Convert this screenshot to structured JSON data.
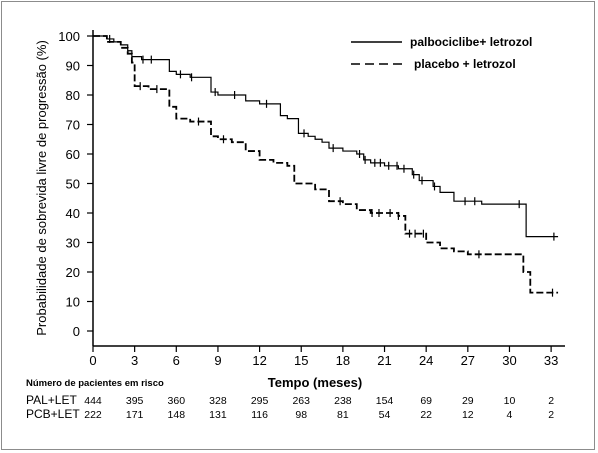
{
  "chart_data": {
    "type": "line",
    "ylabel": "Probabilidade de sobrevida livre de progressão (%)",
    "xlabel": "Tempo (meses)",
    "xlim": [
      0,
      34
    ],
    "ylim": [
      0,
      100
    ],
    "x_ticks": [
      0,
      3,
      6,
      9,
      12,
      15,
      18,
      21,
      24,
      27,
      30,
      33
    ],
    "y_ticks": [
      0,
      10,
      20,
      30,
      40,
      50,
      60,
      70,
      80,
      90,
      100
    ],
    "grid": false,
    "legend_position": "top-right",
    "series": [
      {
        "name": "palbociclibe+ letrozol",
        "style": "solid",
        "points": [
          [
            0,
            100
          ],
          [
            0.5,
            100
          ],
          [
            1,
            99
          ],
          [
            1.5,
            98
          ],
          [
            2,
            97
          ],
          [
            2.5,
            95
          ],
          [
            2.8,
            93
          ],
          [
            3.5,
            92
          ],
          [
            5,
            92
          ],
          [
            5.5,
            88
          ],
          [
            6,
            87
          ],
          [
            7,
            86
          ],
          [
            8,
            86
          ],
          [
            8.5,
            81
          ],
          [
            9,
            80
          ],
          [
            10,
            80
          ],
          [
            11,
            78
          ],
          [
            12,
            77
          ],
          [
            13,
            77
          ],
          [
            13.5,
            73
          ],
          [
            14,
            72
          ],
          [
            14.8,
            67
          ],
          [
            15.5,
            66
          ],
          [
            16,
            65
          ],
          [
            16.5,
            64
          ],
          [
            17,
            62
          ],
          [
            18,
            61
          ],
          [
            19,
            60
          ],
          [
            19.5,
            58
          ],
          [
            20,
            57
          ],
          [
            21,
            56
          ],
          [
            22,
            55
          ],
          [
            23,
            53
          ],
          [
            23.5,
            51
          ],
          [
            24,
            51
          ],
          [
            24.5,
            49
          ],
          [
            25,
            47
          ],
          [
            26,
            44
          ],
          [
            27,
            44
          ],
          [
            28,
            43
          ],
          [
            29,
            43
          ],
          [
            30,
            43
          ],
          [
            31,
            43
          ],
          [
            31.2,
            32
          ],
          [
            32,
            32
          ],
          [
            33.5,
            32
          ]
        ],
        "censor_x": [
          1.2,
          3.6,
          4.2,
          6.3,
          7.1,
          8.8,
          10.2,
          12.5,
          15.2,
          17.3,
          19.2,
          19.6,
          20.3,
          20.7,
          21.3,
          21.9,
          22.4,
          23.1,
          23.7,
          24.6,
          26.8,
          27.5,
          30.7,
          33.2
        ]
      },
      {
        "name": "placebo + letrozol",
        "style": "dashed",
        "points": [
          [
            0,
            100
          ],
          [
            0.5,
            100
          ],
          [
            1,
            98
          ],
          [
            2,
            96
          ],
          [
            2.5,
            94
          ],
          [
            2.8,
            91
          ],
          [
            3,
            83
          ],
          [
            4,
            82
          ],
          [
            5,
            82
          ],
          [
            5.5,
            76
          ],
          [
            6,
            72
          ],
          [
            7,
            71
          ],
          [
            8,
            71
          ],
          [
            8.5,
            66
          ],
          [
            9,
            65
          ],
          [
            10,
            64
          ],
          [
            11,
            61
          ],
          [
            12,
            58
          ],
          [
            13,
            57
          ],
          [
            14,
            56
          ],
          [
            14.5,
            50
          ],
          [
            15,
            50
          ],
          [
            16,
            48
          ],
          [
            17,
            44
          ],
          [
            18,
            43
          ],
          [
            19,
            41
          ],
          [
            20,
            40
          ],
          [
            21,
            40
          ],
          [
            22,
            39
          ],
          [
            22.5,
            33
          ],
          [
            23,
            33
          ],
          [
            24,
            30
          ],
          [
            25,
            28
          ],
          [
            26,
            27
          ],
          [
            27,
            26
          ],
          [
            28,
            26
          ],
          [
            29,
            26
          ],
          [
            30,
            26
          ],
          [
            31,
            20
          ],
          [
            31.5,
            13
          ],
          [
            32,
            13
          ],
          [
            33.5,
            13
          ]
        ],
        "censor_x": [
          3.4,
          4.6,
          7.6,
          9.4,
          17.8,
          20.1,
          20.6,
          21.4,
          22.0,
          22.8,
          23.2,
          23.8,
          27.8,
          33.1
        ]
      }
    ]
  },
  "legend": {
    "solid_label": "palbociclibe+ letrozol",
    "dashed_label": "placebo + letrozol"
  },
  "risk_table": {
    "title": "Número de pacientes em risco",
    "rows": [
      {
        "label": "PAL+LET",
        "values": [
          "444",
          "395",
          "360",
          "328",
          "295",
          "263",
          "238",
          "154",
          "69",
          "29",
          "10",
          "2"
        ]
      },
      {
        "label": "PCB+LET",
        "values": [
          "222",
          "171",
          "148",
          "131",
          "116",
          "98",
          "81",
          "54",
          "22",
          "12",
          "4",
          "2"
        ]
      }
    ]
  }
}
